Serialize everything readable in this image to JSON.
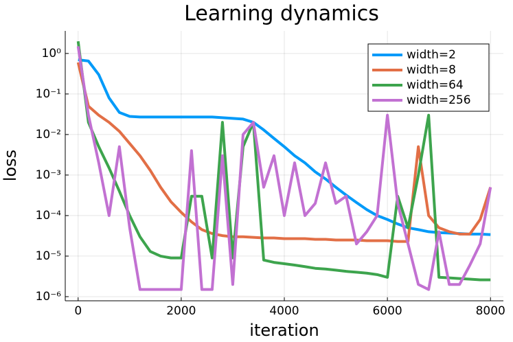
{
  "chart_data": {
    "type": "line",
    "title": "Learning dynamics",
    "x_label": "iteration",
    "y_label": "loss",
    "x": [
      0,
      200,
      400,
      600,
      800,
      1000,
      1200,
      1400,
      1600,
      1800,
      2000,
      2200,
      2400,
      2600,
      2800,
      3000,
      3200,
      3400,
      3600,
      3800,
      4000,
      4200,
      4400,
      4600,
      4800,
      5000,
      5200,
      5400,
      5600,
      5800,
      6000,
      6200,
      6400,
      6600,
      6800,
      7000,
      7200,
      7400,
      7600,
      7800,
      8000
    ],
    "series": [
      {
        "name": "width=2",
        "color": "#009af9",
        "values": [
          0.7,
          0.65,
          0.3,
          0.08,
          0.035,
          0.028,
          0.027,
          0.027,
          0.027,
          0.027,
          0.027,
          0.027,
          0.027,
          0.027,
          0.026,
          0.025,
          0.024,
          0.02,
          0.013,
          0.008,
          0.005,
          0.003,
          0.002,
          0.0012,
          0.0008,
          0.0005,
          0.00032,
          0.00021,
          0.00014,
          0.0001,
          8e-05,
          6.2e-05,
          5e-05,
          4.5e-05,
          4e-05,
          3.8e-05,
          3.7e-05,
          3.6e-05,
          3.5e-05,
          3.5e-05,
          3.4e-05
        ]
      },
      {
        "name": "width=8",
        "color": "#e26f46",
        "values": [
          0.6,
          0.05,
          0.03,
          0.02,
          0.012,
          0.006,
          0.003,
          0.0013,
          0.0005,
          0.00022,
          0.00012,
          7e-05,
          4.5e-05,
          3.6e-05,
          3.2e-05,
          3e-05,
          3e-05,
          2.9e-05,
          2.8e-05,
          2.8e-05,
          2.7e-05,
          2.7e-05,
          2.7e-05,
          2.6e-05,
          2.6e-05,
          2.5e-05,
          2.5e-05,
          2.5e-05,
          2.4e-05,
          2.4e-05,
          2.4e-05,
          2.3e-05,
          2.3e-05,
          0.005,
          0.0001,
          5e-05,
          4e-05,
          3.5e-05,
          3.5e-05,
          8e-05,
          0.0005
        ]
      },
      {
        "name": "width=64",
        "color": "#3da44d",
        "values": [
          2.0,
          0.02,
          0.005,
          0.0015,
          0.0004,
          0.0001,
          3e-05,
          1.3e-05,
          1e-05,
          9e-06,
          9e-06,
          0.0003,
          0.0003,
          9e-06,
          0.02,
          9e-06,
          0.005,
          0.02,
          8e-06,
          7e-06,
          6.5e-06,
          6e-06,
          5.5e-06,
          5e-06,
          4.8e-06,
          4.5e-06,
          4.2e-06,
          4e-06,
          3.8e-06,
          3.5e-06,
          3e-06,
          0.0003,
          5e-05,
          0.001,
          0.03,
          3e-06,
          2.9e-06,
          2.8e-06,
          2.7e-06,
          2.6e-06,
          2.6e-06
        ]
      },
      {
        "name": "width=256",
        "color": "#c271d2",
        "values": [
          1.5,
          0.03,
          0.002,
          0.0001,
          0.005,
          5e-05,
          1.5e-06,
          1.5e-06,
          1.5e-06,
          1.5e-06,
          1.5e-06,
          0.004,
          1.5e-06,
          1.5e-06,
          0.003,
          2e-06,
          0.01,
          0.02,
          0.0005,
          0.003,
          0.0001,
          0.002,
          0.0001,
          0.0002,
          0.002,
          0.0002,
          0.0003,
          2e-05,
          4e-05,
          0.0001,
          0.03,
          0.0002,
          2e-05,
          2e-06,
          1.5e-06,
          4e-05,
          2e-06,
          2e-06,
          6e-06,
          2e-05,
          0.0005
        ]
      }
    ],
    "xlim": [
      -250,
      8250
    ],
    "xticks": [
      0,
      2000,
      4000,
      6000,
      8000
    ],
    "ylim": [
      7.9e-07,
      3.6
    ],
    "log_y": true,
    "yticks": [
      {
        "value": 1e-06,
        "label": "10⁻⁶"
      },
      {
        "value": 1e-05,
        "label": "10⁻⁵"
      },
      {
        "value": 0.0001,
        "label": "10⁻⁴"
      },
      {
        "value": 0.001,
        "label": "10⁻³"
      },
      {
        "value": 0.01,
        "label": "10⁻²"
      },
      {
        "value": 0.1,
        "label": "10⁻¹"
      },
      {
        "value": 1,
        "label": "10⁰"
      }
    ],
    "grid": true,
    "legend_position": "top-right"
  }
}
